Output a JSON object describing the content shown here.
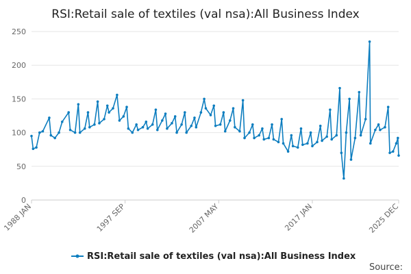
{
  "chart_data": {
    "type": "line",
    "title": "RSI:Retail sale of textiles (val nsa):All Business Index",
    "xlabel": "",
    "ylabel": "",
    "xlim": [
      "1988 JAN",
      "2025 DEC"
    ],
    "ylim": [
      0,
      250
    ],
    "yticks": [
      0,
      50,
      100,
      150,
      200,
      250
    ],
    "xticks": [
      "1988 JAN",
      "1997 SEP",
      "2007 MAY",
      "2017 JAN",
      "2025 DEC"
    ],
    "grid": true,
    "legend": "bottom",
    "color": "#0c7dbf",
    "series": [
      {
        "name": "RSI:Retail sale of textiles (val nsa):All Business Index",
        "points": [
          [
            "1988 JAN",
            95
          ],
          [
            "1988 MAR",
            76
          ],
          [
            "1988 JUL",
            78
          ],
          [
            "1988 NOV",
            100
          ],
          [
            "1989 MAR",
            102
          ],
          [
            "1989 NOV",
            122
          ],
          [
            "1990 JAN",
            96
          ],
          [
            "1990 JUN",
            92
          ],
          [
            "1990 NOV",
            100
          ],
          [
            "1991 MAR",
            116
          ],
          [
            "1991 NOV",
            130
          ],
          [
            "1992 JAN",
            104
          ],
          [
            "1992 JUL",
            100
          ],
          [
            "1992 NOV",
            142
          ],
          [
            "1993 JAN",
            100
          ],
          [
            "1993 JUL",
            106
          ],
          [
            "1993 NOV",
            130
          ],
          [
            "1994 JAN",
            108
          ],
          [
            "1994 JUL",
            112
          ],
          [
            "1994 NOV",
            146
          ],
          [
            "1995 JAN",
            114
          ],
          [
            "1995 JUL",
            120
          ],
          [
            "1995 NOV",
            140
          ],
          [
            "1996 JAN",
            130
          ],
          [
            "1996 JUN",
            136
          ],
          [
            "1996 NOV",
            156
          ],
          [
            "1997 FEB",
            118
          ],
          [
            "1997 JUL",
            124
          ],
          [
            "1997 NOV",
            138
          ],
          [
            "1998 JAN",
            106
          ],
          [
            "1998 JUN",
            100
          ],
          [
            "1998 NOV",
            112
          ],
          [
            "1999 JAN",
            104
          ],
          [
            "1999 JUL",
            108
          ],
          [
            "1999 NOV",
            116
          ],
          [
            "2000 JAN",
            106
          ],
          [
            "2000 JUL",
            112
          ],
          [
            "2000 NOV",
            134
          ],
          [
            "2001 JAN",
            104
          ],
          [
            "2001 JUL",
            118
          ],
          [
            "2001 NOV",
            128
          ],
          [
            "2002 JAN",
            106
          ],
          [
            "2002 JUL",
            114
          ],
          [
            "2002 NOV",
            124
          ],
          [
            "2003 JAN",
            100
          ],
          [
            "2003 JUL",
            112
          ],
          [
            "2003 NOV",
            130
          ],
          [
            "2004 JAN",
            100
          ],
          [
            "2004 JUL",
            110
          ],
          [
            "2004 NOV",
            122
          ],
          [
            "2005 JAN",
            108
          ],
          [
            "2005 JUL",
            130
          ],
          [
            "2005 NOV",
            150
          ],
          [
            "2006 JAN",
            136
          ],
          [
            "2006 JUL",
            126
          ],
          [
            "2006 NOV",
            140
          ],
          [
            "2007 JAN",
            110
          ],
          [
            "2007 JUL",
            112
          ],
          [
            "2007 NOV",
            130
          ],
          [
            "2008 JAN",
            102
          ],
          [
            "2008 JUL",
            118
          ],
          [
            "2008 NOV",
            136
          ],
          [
            "2009 JAN",
            108
          ],
          [
            "2009 JUL",
            102
          ],
          [
            "2009 NOV",
            148
          ],
          [
            "2010 JAN",
            92
          ],
          [
            "2010 JUL",
            100
          ],
          [
            "2010 NOV",
            112
          ],
          [
            "2011 JAN",
            92
          ],
          [
            "2011 JUL",
            96
          ],
          [
            "2011 NOV",
            106
          ],
          [
            "2012 JAN",
            90
          ],
          [
            "2012 JUL",
            92
          ],
          [
            "2012 NOV",
            112
          ],
          [
            "2013 JAN",
            90
          ],
          [
            "2013 JUL",
            86
          ],
          [
            "2013 NOV",
            120
          ],
          [
            "2014 JAN",
            84
          ],
          [
            "2014 JUL",
            72
          ],
          [
            "2014 NOV",
            96
          ],
          [
            "2015 JAN",
            80
          ],
          [
            "2015 JUL",
            78
          ],
          [
            "2015 NOV",
            106
          ],
          [
            "2016 JAN",
            82
          ],
          [
            "2016 JUL",
            84
          ],
          [
            "2016 NOV",
            100
          ],
          [
            "2017 JAN",
            80
          ],
          [
            "2017 JUL",
            86
          ],
          [
            "2017 NOV",
            110
          ],
          [
            "2018 JAN",
            88
          ],
          [
            "2018 JUL",
            94
          ],
          [
            "2018 NOV",
            134
          ],
          [
            "2019 JAN",
            90
          ],
          [
            "2019 JUL",
            96
          ],
          [
            "2019 NOV",
            166
          ],
          [
            "2020 JAN",
            70
          ],
          [
            "2020 APR",
            32
          ],
          [
            "2020 JUL",
            100
          ],
          [
            "2020 NOV",
            150
          ],
          [
            "2021 JAN",
            60
          ],
          [
            "2021 JUN",
            92
          ],
          [
            "2021 NOV",
            160
          ],
          [
            "2022 JAN",
            96
          ],
          [
            "2022 JUL",
            120
          ],
          [
            "2022 DEC",
            235
          ],
          [
            "2023 JAN",
            84
          ],
          [
            "2023 JUL",
            104
          ],
          [
            "2023 NOV",
            112
          ],
          [
            "2024 JAN",
            104
          ],
          [
            "2024 JUL",
            108
          ],
          [
            "2024 NOV",
            138
          ],
          [
            "2025 JAN",
            70
          ],
          [
            "2025 MAY",
            72
          ],
          [
            "2025 SEP",
            84
          ],
          [
            "2025 NOV",
            92
          ],
          [
            "2025 DEC",
            66
          ]
        ]
      }
    ]
  },
  "footer": {
    "source_label": "Source:"
  }
}
